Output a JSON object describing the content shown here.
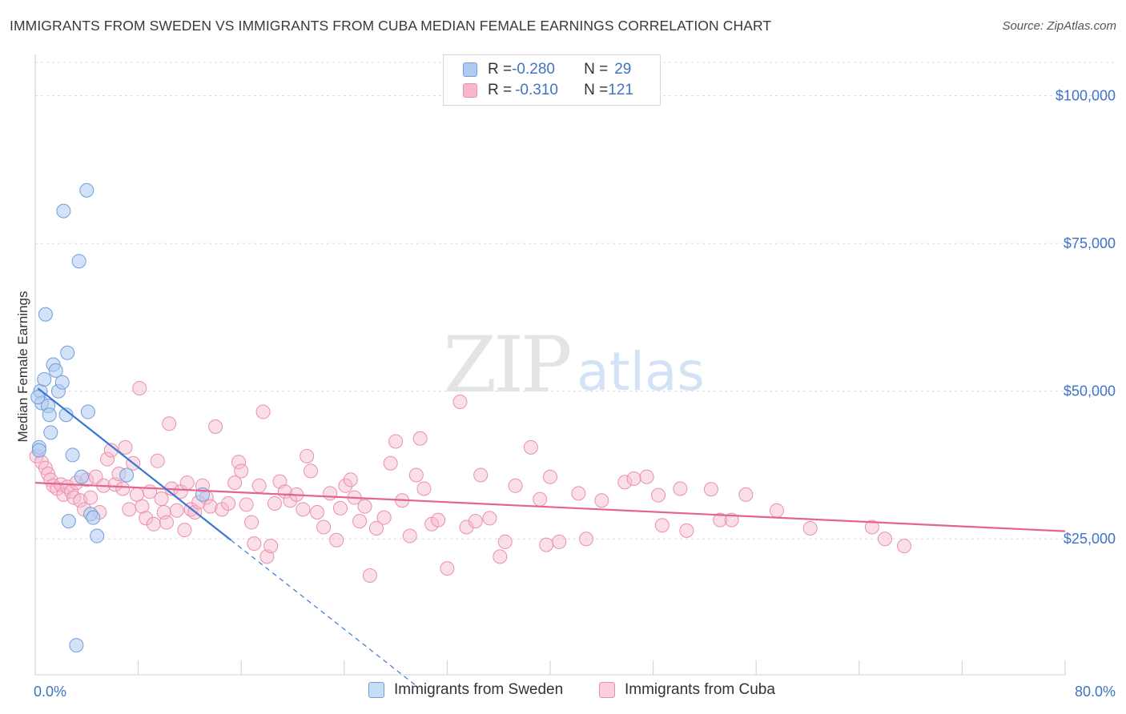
{
  "header": {
    "title": "IMMIGRANTS FROM SWEDEN VS IMMIGRANTS FROM CUBA MEDIAN FEMALE EARNINGS CORRELATION CHART",
    "source": "Source: ZipAtlas.com"
  },
  "legend_box": {
    "rows": [
      {
        "r_label": "R = ",
        "r_value": "-0.280",
        "n_label": "N = ",
        "n_value": "29"
      },
      {
        "r_label": "R = ",
        "r_value": "-0.310",
        "n_label": "N = ",
        "n_value": "121"
      }
    ]
  },
  "watermark": {
    "zip": "ZIP",
    "atlas": "atlas"
  },
  "colors": {
    "sweden_fill": "#aecbf0",
    "sweden_stroke": "#6f9fdc",
    "sweden_line": "#3a78d4",
    "cuba_fill": "#f7b8cc",
    "cuba_stroke": "#ea8fad",
    "cuba_line": "#e2658f",
    "tick_text": "#3f73c4",
    "grid": "#d8d8d8"
  },
  "chart_data": {
    "type": "scatter",
    "title": "IMMIGRANTS FROM SWEDEN VS IMMIGRANTS FROM CUBA MEDIAN FEMALE EARNINGS CORRELATION CHART",
    "xlabel": "",
    "ylabel": "Median Female Earnings",
    "xlim": [
      0,
      80
    ],
    "ylim": [
      2000,
      107000
    ],
    "x_tick_labels": [
      {
        "value": 0,
        "label": "0.0%"
      },
      {
        "value": 80,
        "label": "80.0%"
      }
    ],
    "x_minor_ticks": [
      0,
      8,
      16,
      24,
      32,
      40,
      48,
      56,
      64,
      72,
      80
    ],
    "y_ticks": [
      {
        "value": 25000,
        "label": "$25,000"
      },
      {
        "value": 50000,
        "label": "$50,000"
      },
      {
        "value": 75000,
        "label": "$75,000"
      },
      {
        "value": 100000,
        "label": "$100,000"
      }
    ],
    "series": [
      {
        "name": "Immigrants from Sweden",
        "r": -0.28,
        "n": 29,
        "trend": {
          "x0": 0.2,
          "y0": 50500,
          "x1": 15.2,
          "y1": 24800,
          "dash_x1": 29.5
        },
        "points": [
          [
            0.3,
            40500
          ],
          [
            0.4,
            50000
          ],
          [
            0.5,
            48000
          ],
          [
            0.7,
            52000
          ],
          [
            0.8,
            63000
          ],
          [
            1.0,
            47500
          ],
          [
            1.1,
            46000
          ],
          [
            1.2,
            43000
          ],
          [
            1.4,
            54500
          ],
          [
            1.6,
            53500
          ],
          [
            1.8,
            50000
          ],
          [
            2.1,
            51500
          ],
          [
            2.2,
            80500
          ],
          [
            2.4,
            46000
          ],
          [
            2.5,
            56500
          ],
          [
            2.6,
            28000
          ],
          [
            2.9,
            39200
          ],
          [
            3.2,
            7000
          ],
          [
            3.4,
            72000
          ],
          [
            3.6,
            35500
          ],
          [
            4.0,
            84000
          ],
          [
            4.1,
            46500
          ],
          [
            4.3,
            29200
          ],
          [
            4.5,
            28600
          ],
          [
            4.8,
            25500
          ],
          [
            7.1,
            35800
          ],
          [
            13.0,
            32500
          ],
          [
            0.2,
            49000
          ],
          [
            0.3,
            40000
          ]
        ]
      },
      {
        "name": "Immigrants from Cuba",
        "r": -0.31,
        "n": 121,
        "trend": {
          "x0": 0,
          "y0": 34500,
          "x1": 80,
          "y1": 26300
        },
        "points": [
          [
            0.1,
            39000
          ],
          [
            0.5,
            38000
          ],
          [
            0.8,
            37000
          ],
          [
            1.0,
            36000
          ],
          [
            1.2,
            35000
          ],
          [
            1.4,
            34000
          ],
          [
            1.7,
            33500
          ],
          [
            2.0,
            34200
          ],
          [
            2.2,
            32500
          ],
          [
            2.5,
            33800
          ],
          [
            2.8,
            33000
          ],
          [
            3.0,
            32000
          ],
          [
            3.2,
            34500
          ],
          [
            3.5,
            31500
          ],
          [
            3.8,
            30000
          ],
          [
            4.0,
            35000
          ],
          [
            4.3,
            32000
          ],
          [
            4.7,
            35500
          ],
          [
            5.0,
            29500
          ],
          [
            5.3,
            34000
          ],
          [
            5.6,
            38500
          ],
          [
            5.9,
            40000
          ],
          [
            6.2,
            34200
          ],
          [
            6.5,
            36000
          ],
          [
            6.8,
            33500
          ],
          [
            7.0,
            40500
          ],
          [
            7.3,
            30000
          ],
          [
            7.6,
            37800
          ],
          [
            7.9,
            32500
          ],
          [
            8.1,
            50500
          ],
          [
            8.3,
            30500
          ],
          [
            8.6,
            28500
          ],
          [
            8.9,
            33000
          ],
          [
            9.2,
            27500
          ],
          [
            9.5,
            38200
          ],
          [
            9.8,
            31800
          ],
          [
            10.0,
            29500
          ],
          [
            10.2,
            27800
          ],
          [
            10.4,
            44500
          ],
          [
            10.6,
            33500
          ],
          [
            11.0,
            29800
          ],
          [
            11.3,
            33000
          ],
          [
            11.6,
            26500
          ],
          [
            11.8,
            34500
          ],
          [
            12.1,
            30000
          ],
          [
            12.4,
            29500
          ],
          [
            12.7,
            31200
          ],
          [
            13.0,
            34000
          ],
          [
            13.3,
            32000
          ],
          [
            13.6,
            30500
          ],
          [
            14.0,
            44000
          ],
          [
            14.5,
            30000
          ],
          [
            15.0,
            31000
          ],
          [
            15.5,
            34500
          ],
          [
            15.8,
            38000
          ],
          [
            16.0,
            36500
          ],
          [
            16.4,
            30800
          ],
          [
            16.8,
            27800
          ],
          [
            17.0,
            24200
          ],
          [
            17.4,
            34000
          ],
          [
            17.7,
            46500
          ],
          [
            18.0,
            22000
          ],
          [
            18.3,
            23800
          ],
          [
            18.6,
            31000
          ],
          [
            19.0,
            34700
          ],
          [
            19.4,
            33000
          ],
          [
            19.8,
            31500
          ],
          [
            20.3,
            32500
          ],
          [
            20.8,
            30000
          ],
          [
            21.1,
            39000
          ],
          [
            21.4,
            36500
          ],
          [
            21.9,
            29500
          ],
          [
            22.4,
            27000
          ],
          [
            22.9,
            32700
          ],
          [
            23.4,
            24800
          ],
          [
            23.7,
            30200
          ],
          [
            24.1,
            34000
          ],
          [
            24.5,
            35000
          ],
          [
            24.8,
            32000
          ],
          [
            25.2,
            28000
          ],
          [
            25.6,
            30500
          ],
          [
            26.0,
            18800
          ],
          [
            26.5,
            26800
          ],
          [
            27.1,
            28600
          ],
          [
            27.6,
            37800
          ],
          [
            28.0,
            41500
          ],
          [
            28.5,
            31500
          ],
          [
            29.1,
            25500
          ],
          [
            29.6,
            35800
          ],
          [
            29.9,
            42000
          ],
          [
            30.2,
            33500
          ],
          [
            30.8,
            27500
          ],
          [
            31.3,
            28200
          ],
          [
            32.0,
            20000
          ],
          [
            33.0,
            48200
          ],
          [
            33.5,
            27000
          ],
          [
            34.2,
            28000
          ],
          [
            34.6,
            35800
          ],
          [
            35.3,
            28500
          ],
          [
            36.1,
            22000
          ],
          [
            36.5,
            24500
          ],
          [
            37.3,
            34000
          ],
          [
            38.5,
            40500
          ],
          [
            39.2,
            31700
          ],
          [
            39.7,
            24000
          ],
          [
            40.0,
            35500
          ],
          [
            40.7,
            24500
          ],
          [
            42.2,
            32700
          ],
          [
            42.8,
            25000
          ],
          [
            44.0,
            31500
          ],
          [
            45.8,
            34600
          ],
          [
            46.5,
            35200
          ],
          [
            47.5,
            35500
          ],
          [
            48.4,
            32400
          ],
          [
            48.7,
            27300
          ],
          [
            50.1,
            33500
          ],
          [
            50.6,
            26400
          ],
          [
            52.5,
            33400
          ],
          [
            53.2,
            28200
          ],
          [
            54.1,
            28200
          ],
          [
            55.2,
            32500
          ],
          [
            57.6,
            29800
          ],
          [
            60.2,
            26800
          ],
          [
            65.0,
            27000
          ],
          [
            66.0,
            25000
          ],
          [
            67.5,
            23800
          ]
        ]
      }
    ]
  },
  "bottom_legend": [
    {
      "label": "Immigrants from Sweden"
    },
    {
      "label": "Immigrants from Cuba"
    }
  ]
}
